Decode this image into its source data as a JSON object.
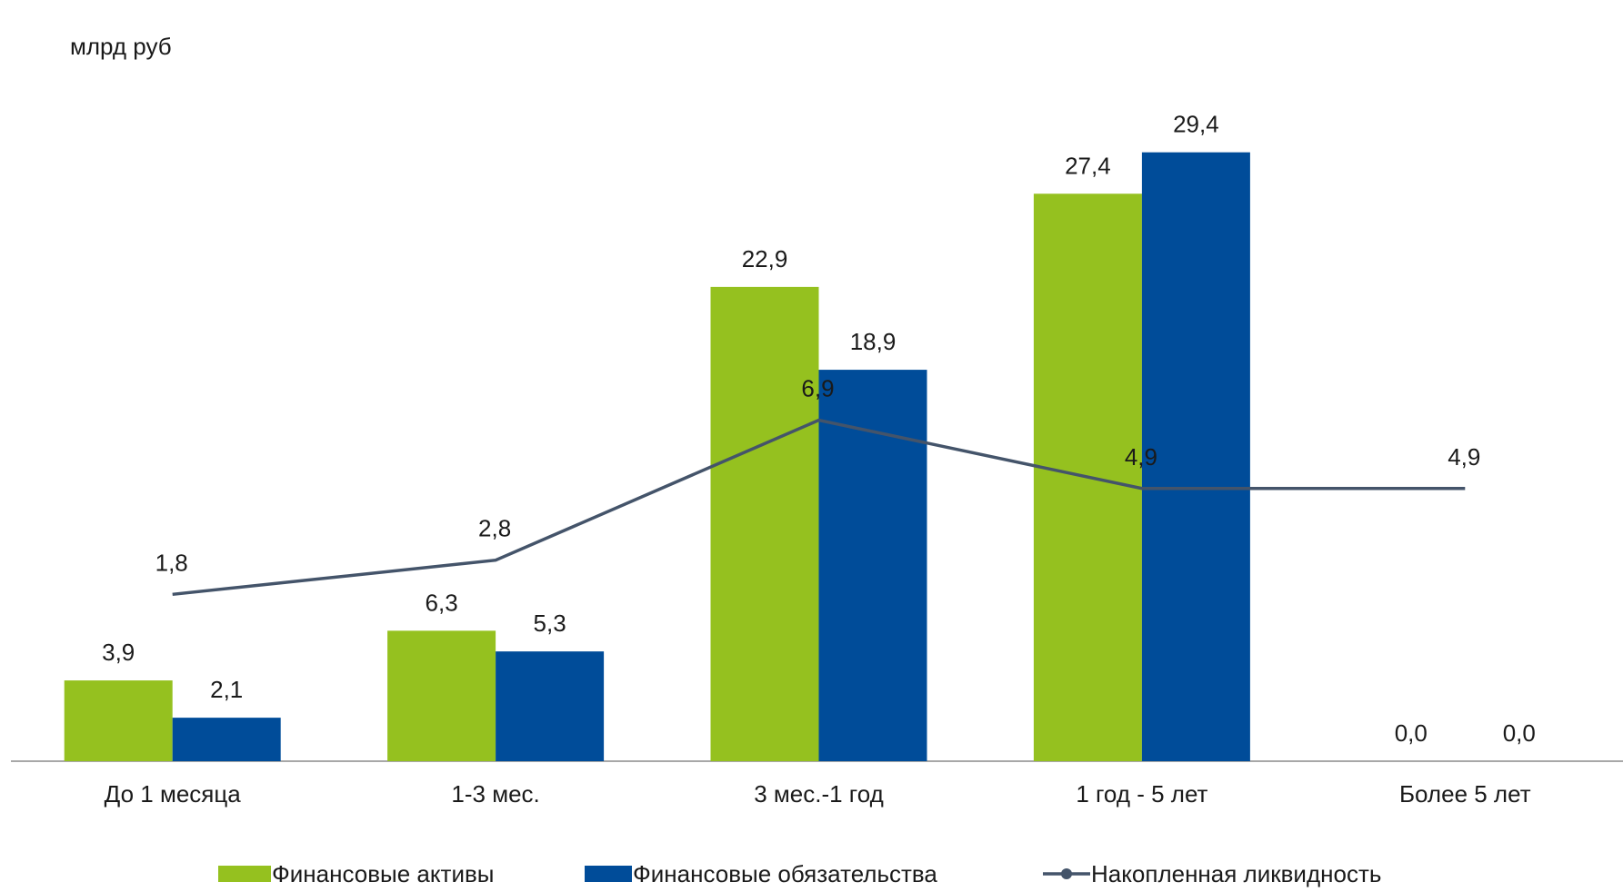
{
  "chart_data": {
    "type": "bar",
    "unit_label": "млрд руб",
    "categories": [
      "До 1 месяца",
      "1-3 мес.",
      "3 мес.-1 год",
      "1 год - 5 лет",
      "Более 5 лет"
    ],
    "series": [
      {
        "name": "Финансовые активы",
        "kind": "bar",
        "color": "#95C11F",
        "values": [
          3.9,
          6.3,
          22.9,
          27.4,
          0.0
        ],
        "labels": [
          "3,9",
          "6,3",
          "22,9",
          "27,4",
          "0,0"
        ]
      },
      {
        "name": "Финансовые обязательства",
        "kind": "bar",
        "color": "#004C99",
        "values": [
          2.1,
          5.3,
          18.9,
          29.4,
          0.0
        ],
        "labels": [
          "2,1",
          "5,3",
          "18,9",
          "29,4",
          "0,0"
        ]
      },
      {
        "name": "Накопленная ликвидность",
        "kind": "line",
        "color": "#44546A",
        "values": [
          1.8,
          2.8,
          6.9,
          4.9,
          4.9
        ],
        "labels": [
          "1,8",
          "2,8",
          "6,9",
          "4,9",
          "4,9"
        ]
      }
    ],
    "ylim": [
      0,
      30
    ],
    "grid": false,
    "legend_position": "bottom",
    "xlabel": "",
    "ylabel": ""
  }
}
